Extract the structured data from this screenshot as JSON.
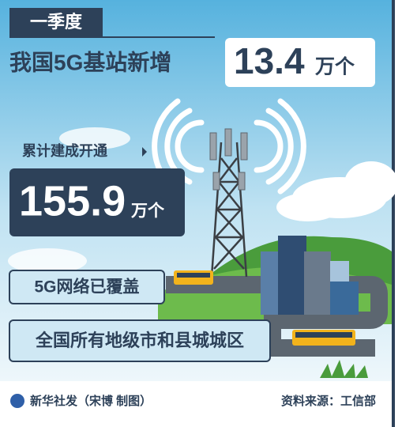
{
  "header": {
    "period": "一季度",
    "headline": "我国5G基站新增",
    "new_stations": {
      "value": 13.4,
      "unit": "万个"
    }
  },
  "cumulative": {
    "label": "累计建成开通",
    "value": 155.9,
    "unit": "万个"
  },
  "coverage": {
    "label": "5G网络已覆盖",
    "scope": "全国所有地级市和县城城区"
  },
  "footer": {
    "credit": "新华社发（宋博 制图）",
    "source": "资料来源：工信部"
  }
}
